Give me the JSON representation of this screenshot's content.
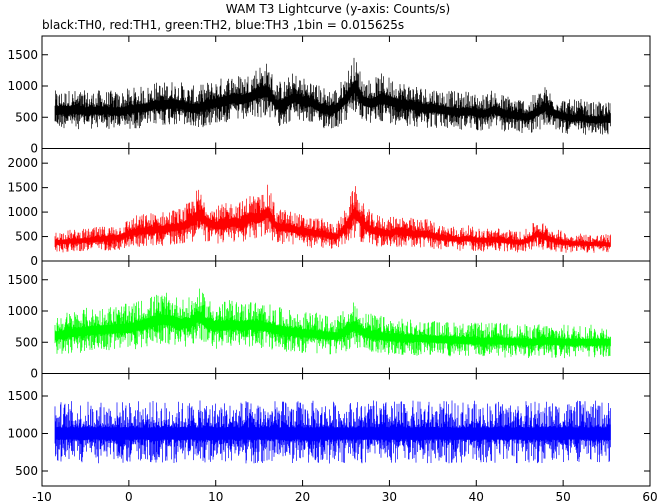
{
  "chart_data": {
    "type": "line",
    "title": "WAM T3 Lightcurve (y-axis: Counts/s)",
    "subtitle": "black:TH0, red:TH1, green:TH2, blue:TH3 ,1bin = 0.015625s",
    "xlabel": "",
    "ylabel": "",
    "xlim": [
      -10,
      60
    ],
    "x_ticks": [
      -10,
      0,
      10,
      20,
      30,
      40,
      50,
      60
    ],
    "x_tick_labels": [
      "-10",
      "0",
      "10",
      "20",
      "30",
      "40",
      "50",
      "60"
    ],
    "bin_size_s": 0.015625,
    "panels": [
      {
        "name": "TH0",
        "color": "#000000",
        "ylim": [
          0,
          1800
        ],
        "y_ticks": [
          0,
          500,
          1000,
          1500
        ],
        "y_tick_labels": [
          "0",
          "500",
          "1000",
          "1500"
        ],
        "x": [
          -8.5,
          -7,
          -5,
          -3,
          -1,
          0,
          1,
          2,
          3,
          4,
          5,
          6,
          7,
          8,
          9,
          10,
          11,
          12,
          13,
          14,
          15,
          16,
          17,
          18,
          19,
          20,
          21,
          22,
          23,
          24,
          25,
          26,
          27,
          28,
          29,
          30,
          31,
          32,
          33,
          34,
          35,
          36,
          37,
          38,
          39,
          40,
          41,
          42,
          43,
          44,
          45,
          46,
          47,
          48,
          49,
          50,
          51,
          52,
          53,
          54,
          55.5
        ],
        "mean": [
          600,
          620,
          600,
          610,
          590,
          620,
          640,
          650,
          700,
          700,
          720,
          700,
          650,
          640,
          700,
          730,
          760,
          800,
          780,
          820,
          900,
          920,
          700,
          720,
          820,
          760,
          740,
          650,
          620,
          640,
          800,
          1000,
          760,
          720,
          800,
          760,
          720,
          700,
          680,
          640,
          650,
          620,
          600,
          580,
          600,
          570,
          560,
          620,
          560,
          540,
          520,
          500,
          580,
          660,
          560,
          520,
          480,
          500,
          460,
          460,
          470
        ],
        "spread": [
          300,
          300,
          300,
          300,
          300,
          320,
          320,
          320,
          340,
          340,
          350,
          340,
          330,
          330,
          340,
          350,
          360,
          380,
          370,
          380,
          420,
          430,
          350,
          350,
          380,
          360,
          350,
          330,
          320,
          320,
          380,
          450,
          360,
          350,
          370,
          360,
          350,
          340,
          330,
          320,
          320,
          310,
          300,
          300,
          300,
          290,
          290,
          300,
          290,
          280,
          280,
          270,
          300,
          320,
          290,
          280,
          270,
          270,
          260,
          260,
          260
        ]
      },
      {
        "name": "TH1",
        "color": "#ff0000",
        "ylim": [
          0,
          2300
        ],
        "y_ticks": [
          0,
          500,
          1000,
          1500,
          2000
        ],
        "y_tick_labels": [
          "0",
          "500",
          "1000",
          "1500",
          "2000"
        ],
        "x": [
          -8.5,
          -7,
          -5,
          -3,
          -1,
          0,
          1,
          2,
          3,
          4,
          5,
          6,
          7,
          8,
          9,
          10,
          11,
          12,
          13,
          14,
          15,
          16,
          17,
          18,
          19,
          20,
          21,
          22,
          23,
          24,
          25,
          26,
          27,
          28,
          29,
          30,
          31,
          32,
          33,
          34,
          35,
          36,
          37,
          38,
          39,
          40,
          41,
          42,
          43,
          44,
          45,
          46,
          47,
          48,
          49,
          50,
          51,
          52,
          53,
          54,
          55.5
        ],
        "mean": [
          380,
          400,
          420,
          450,
          480,
          560,
          600,
          620,
          640,
          650,
          680,
          700,
          780,
          950,
          800,
          720,
          740,
          800,
          780,
          900,
          860,
          1000,
          700,
          680,
          650,
          600,
          580,
          560,
          520,
          500,
          700,
          1000,
          760,
          620,
          600,
          560,
          620,
          580,
          540,
          560,
          520,
          480,
          460,
          440,
          460,
          430,
          420,
          440,
          420,
          400,
          380,
          420,
          550,
          480,
          420,
          380,
          360,
          360,
          350,
          350,
          340
        ],
        "spread": [
          220,
          220,
          220,
          240,
          260,
          300,
          320,
          330,
          340,
          340,
          360,
          360,
          400,
          520,
          420,
          380,
          390,
          420,
          410,
          460,
          440,
          520,
          360,
          350,
          340,
          320,
          310,
          300,
          280,
          270,
          360,
          520,
          400,
          330,
          320,
          300,
          330,
          310,
          290,
          300,
          280,
          260,
          250,
          240,
          250,
          230,
          230,
          240,
          230,
          220,
          210,
          230,
          290,
          260,
          230,
          210,
          200,
          200,
          190,
          190,
          190
        ]
      },
      {
        "name": "TH2",
        "color": "#00ff00",
        "ylim": [
          0,
          1800
        ],
        "y_ticks": [
          0,
          500,
          1000,
          1500
        ],
        "y_tick_labels": [
          "0",
          "500",
          "1000",
          "1500"
        ],
        "x": [
          -8.5,
          -7,
          -5,
          -3,
          -1,
          0,
          1,
          2,
          3,
          4,
          5,
          6,
          7,
          8,
          9,
          10,
          11,
          12,
          13,
          14,
          15,
          16,
          17,
          18,
          19,
          20,
          21,
          22,
          23,
          24,
          25,
          26,
          27,
          28,
          29,
          30,
          31,
          32,
          33,
          34,
          35,
          36,
          37,
          38,
          39,
          40,
          41,
          42,
          43,
          44,
          45,
          46,
          47,
          48,
          49,
          50,
          51,
          52,
          53,
          54,
          55.5
        ],
        "mean": [
          600,
          640,
          680,
          700,
          720,
          720,
          760,
          800,
          840,
          860,
          840,
          800,
          800,
          920,
          800,
          760,
          760,
          780,
          760,
          780,
          760,
          740,
          700,
          680,
          660,
          640,
          640,
          620,
          600,
          600,
          680,
          760,
          660,
          620,
          600,
          580,
          580,
          560,
          560,
          560,
          550,
          540,
          540,
          530,
          530,
          520,
          520,
          520,
          520,
          510,
          510,
          500,
          510,
          520,
          510,
          500,
          500,
          500,
          500,
          500,
          500
        ],
        "spread": [
          320,
          330,
          340,
          350,
          360,
          360,
          370,
          380,
          400,
          400,
          400,
          380,
          380,
          420,
          380,
          370,
          370,
          370,
          360,
          370,
          360,
          350,
          340,
          330,
          320,
          320,
          320,
          310,
          300,
          300,
          330,
          360,
          320,
          310,
          300,
          290,
          290,
          280,
          280,
          280,
          280,
          270,
          270,
          270,
          270,
          270,
          270,
          270,
          270,
          260,
          260,
          260,
          260,
          270,
          260,
          260,
          260,
          260,
          260,
          260,
          260
        ]
      },
      {
        "name": "TH3",
        "color": "#0000ff",
        "ylim": [
          300,
          1800
        ],
        "y_ticks": [
          500,
          1000,
          1500
        ],
        "y_tick_labels": [
          "500",
          "1000",
          "1500"
        ],
        "x": [
          -8.5,
          -7,
          -5,
          -3,
          -1,
          0,
          1,
          2,
          3,
          4,
          5,
          6,
          7,
          8,
          9,
          10,
          11,
          12,
          13,
          14,
          15,
          16,
          17,
          18,
          19,
          20,
          21,
          22,
          23,
          24,
          25,
          26,
          27,
          28,
          29,
          30,
          31,
          32,
          33,
          34,
          35,
          36,
          37,
          38,
          39,
          40,
          41,
          42,
          43,
          44,
          45,
          46,
          47,
          48,
          49,
          50,
          51,
          52,
          53,
          54,
          55.5
        ],
        "mean": [
          1000,
          1000,
          1000,
          1000,
          1000,
          1000,
          1000,
          1000,
          1000,
          1000,
          1000,
          1000,
          1000,
          1000,
          1000,
          1000,
          1000,
          1000,
          1000,
          1000,
          1000,
          1000,
          1000,
          1000,
          1000,
          1000,
          1000,
          1000,
          1000,
          1000,
          1000,
          1000,
          1000,
          1000,
          1000,
          1000,
          1000,
          1000,
          1000,
          1000,
          1000,
          1000,
          1000,
          1000,
          1000,
          1000,
          1000,
          1000,
          1000,
          1000,
          1000,
          1000,
          1000,
          1000,
          1000,
          1000,
          1000,
          1000,
          1000,
          1000,
          1000
        ],
        "spread": [
          400,
          400,
          400,
          400,
          400,
          400,
          400,
          400,
          400,
          400,
          400,
          400,
          400,
          400,
          400,
          400,
          400,
          400,
          400,
          400,
          400,
          400,
          400,
          400,
          400,
          400,
          400,
          400,
          400,
          400,
          400,
          400,
          400,
          400,
          400,
          400,
          400,
          400,
          400,
          400,
          400,
          400,
          400,
          400,
          400,
          400,
          400,
          400,
          400,
          400,
          400,
          400,
          400,
          400,
          400,
          400,
          400,
          400,
          400,
          400,
          400
        ]
      }
    ]
  }
}
